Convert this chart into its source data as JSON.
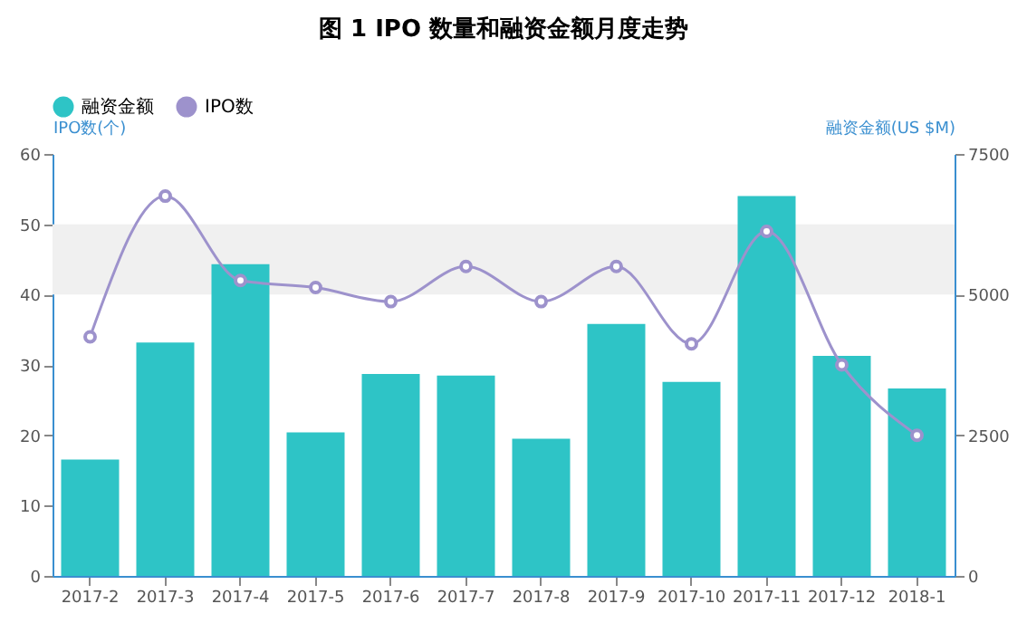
{
  "chart_data": {
    "type": "bar",
    "title": "图 1  IPO 数量和融资金额月度走势",
    "ylabel": "IPO数(个)",
    "y2label": "融资金额(US $M)",
    "categories": [
      "2017-2",
      "2017-3",
      "2017-4",
      "2017-5",
      "2017-6",
      "2017-7",
      "2017-8",
      "2017-9",
      "2017-10",
      "2017-11",
      "2017-12",
      "2018-1"
    ],
    "series": [
      {
        "name": "融资金额",
        "axis": "y2",
        "color": "#2ec4c6",
        "values": [
          2070,
          4150,
          5540,
          2550,
          3590,
          3560,
          2440,
          4480,
          3450,
          6750,
          3910,
          3330
        ]
      },
      {
        "name": "IPO数",
        "type": "line",
        "color": "#9d92cc",
        "marker": "circle",
        "values": [
          34,
          54,
          42,
          41,
          39,
          44,
          39,
          44,
          33,
          49,
          30,
          20
        ]
      }
    ],
    "ylim": [
      0,
      60
    ],
    "yticks": [
      0,
      10,
      20,
      30,
      40,
      50,
      60
    ],
    "y2lim": [
      0,
      7500
    ],
    "y2ticks": [
      0,
      2500,
      5000,
      7500
    ],
    "bands": [
      {
        "axis": "y",
        "from": 40,
        "to": 50,
        "color": "#f0f0f0"
      }
    ],
    "grid": false,
    "legend": "top"
  }
}
